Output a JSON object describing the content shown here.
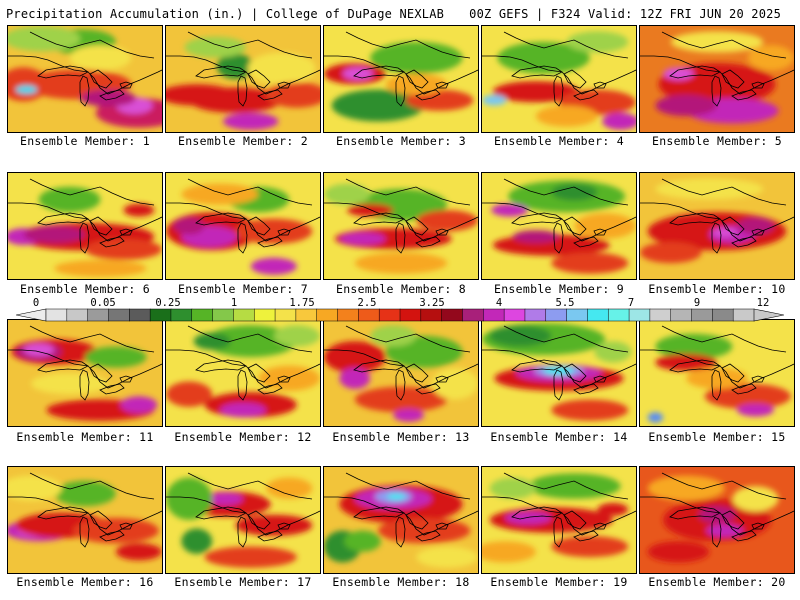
{
  "header": {
    "left": "Precipitation Accumulation (in.) | College of DuPage NEXLAB",
    "right": "00Z GEFS | F324 Valid: 12Z FRI JUN 20 2025"
  },
  "legend": {
    "tick_labels": [
      "0",
      "0.05",
      "0.25",
      "1",
      "1.75",
      "2.5",
      "3.25",
      "4",
      "5.5",
      "7",
      "9",
      "12"
    ],
    "swatch_colors": [
      "#e3e3e3",
      "#c8c8c8",
      "#9b9b9b",
      "#767676",
      "#5b5b5b",
      "#1a6f1a",
      "#2e8f2e",
      "#56b426",
      "#84c84a",
      "#b6dc43",
      "#eef23c",
      "#f4e24a",
      "#f8c83c",
      "#f7a823",
      "#f3811c",
      "#ee5b1a",
      "#e63217",
      "#d3130f",
      "#b50f0f",
      "#93081c",
      "#a8207a",
      "#c228b8",
      "#dd46e0",
      "#b07be8",
      "#8d9cf0",
      "#7ac8f0",
      "#45e8f0",
      "#66f2e8",
      "#9de6e6",
      "#cfcfcf",
      "#b5b5b5",
      "#9a9a9a",
      "#8a8a8a",
      "#c9c9c9"
    ]
  },
  "members": [
    {
      "label": "Ensemble Member: 1",
      "base": "#f2c43a",
      "blobs": [
        [
          "#e33c1a",
          0.45,
          0.55,
          0.35,
          0.14
        ],
        [
          "#cb1c5e",
          0.85,
          0.82,
          0.28,
          0.14
        ],
        [
          "#d94fd6",
          0.82,
          0.75,
          0.12,
          0.08
        ],
        [
          "#56b426",
          0.48,
          0.15,
          0.22,
          0.12
        ],
        [
          "#9fd24a",
          0.22,
          0.12,
          0.25,
          0.12
        ],
        [
          "#e33c1a",
          0.1,
          0.55,
          0.16,
          0.16
        ],
        [
          "#3ad7f0",
          0.12,
          0.6,
          0.07,
          0.04
        ],
        [
          "#b3127a",
          0.65,
          0.68,
          0.18,
          0.08
        ],
        [
          "#f4e24a",
          0.6,
          0.3,
          0.2,
          0.12
        ]
      ]
    },
    {
      "label": "Ensemble Member: 2",
      "base": "#f2c43a",
      "blobs": [
        [
          "#d61616",
          0.45,
          0.7,
          0.3,
          0.12
        ],
        [
          "#2e8f2e",
          0.45,
          0.38,
          0.12,
          0.12
        ],
        [
          "#9fd24a",
          0.32,
          0.2,
          0.2,
          0.1
        ],
        [
          "#c228b8",
          0.55,
          0.9,
          0.18,
          0.08
        ],
        [
          "#d61616",
          0.2,
          0.65,
          0.25,
          0.1
        ],
        [
          "#f4e24a",
          0.75,
          0.4,
          0.22,
          0.15
        ],
        [
          "#e33c1a",
          0.85,
          0.65,
          0.2,
          0.12
        ]
      ]
    },
    {
      "label": "Ensemble Member: 3",
      "base": "#f4e24a",
      "blobs": [
        [
          "#2e8f2e",
          0.35,
          0.75,
          0.3,
          0.15
        ],
        [
          "#56b426",
          0.6,
          0.3,
          0.3,
          0.15
        ],
        [
          "#d61616",
          0.2,
          0.45,
          0.2,
          0.1
        ],
        [
          "#5b8ff0",
          0.22,
          0.45,
          0.07,
          0.04
        ],
        [
          "#d94fd6",
          0.22,
          0.45,
          0.1,
          0.06
        ],
        [
          "#e33c1a",
          0.75,
          0.7,
          0.22,
          0.1
        ],
        [
          "#f7a823",
          0.6,
          0.55,
          0.2,
          0.1
        ]
      ]
    },
    {
      "label": "Ensemble Member: 4",
      "base": "#f4e24a",
      "blobs": [
        [
          "#56b426",
          0.4,
          0.3,
          0.3,
          0.15
        ],
        [
          "#9fd24a",
          0.75,
          0.15,
          0.2,
          0.1
        ],
        [
          "#d61616",
          0.35,
          0.62,
          0.28,
          0.1
        ],
        [
          "#7ac8f0",
          0.08,
          0.7,
          0.08,
          0.05
        ],
        [
          "#e33c1a",
          0.75,
          0.72,
          0.25,
          0.12
        ],
        [
          "#c228b8",
          0.9,
          0.9,
          0.12,
          0.08
        ],
        [
          "#f7a823",
          0.55,
          0.85,
          0.2,
          0.1
        ]
      ]
    },
    {
      "label": "Ensemble Member: 5",
      "base": "#ea7a20",
      "blobs": [
        [
          "#d61616",
          0.5,
          0.55,
          0.38,
          0.2
        ],
        [
          "#7ac8f0",
          0.25,
          0.45,
          0.07,
          0.04
        ],
        [
          "#d94fd6",
          0.25,
          0.45,
          0.1,
          0.06
        ],
        [
          "#c228b8",
          0.6,
          0.8,
          0.3,
          0.12
        ],
        [
          "#b3127a",
          0.3,
          0.75,
          0.2,
          0.1
        ],
        [
          "#f4e24a",
          0.5,
          0.15,
          0.3,
          0.1
        ],
        [
          "#f7a823",
          0.85,
          0.3,
          0.15,
          0.12
        ]
      ]
    },
    {
      "label": "Ensemble Member: 6",
      "base": "#f4e24a",
      "blobs": [
        [
          "#d61616",
          0.5,
          0.6,
          0.45,
          0.13
        ],
        [
          "#c228b8",
          0.1,
          0.6,
          0.12,
          0.08
        ],
        [
          "#b3127a",
          0.3,
          0.58,
          0.2,
          0.08
        ],
        [
          "#e33c1a",
          0.75,
          0.72,
          0.25,
          0.1
        ],
        [
          "#56b426",
          0.4,
          0.25,
          0.2,
          0.12
        ],
        [
          "#f7a823",
          0.6,
          0.9,
          0.3,
          0.08
        ],
        [
          "#d61616",
          0.85,
          0.35,
          0.1,
          0.06
        ]
      ]
    },
    {
      "label": "Ensemble Member: 7",
      "base": "#f4e24a",
      "blobs": [
        [
          "#d61616",
          0.3,
          0.55,
          0.3,
          0.18
        ],
        [
          "#c228b8",
          0.28,
          0.6,
          0.18,
          0.1
        ],
        [
          "#b3127a",
          0.15,
          0.5,
          0.1,
          0.08
        ],
        [
          "#e33c1a",
          0.7,
          0.55,
          0.25,
          0.12
        ],
        [
          "#c228b8",
          0.7,
          0.88,
          0.15,
          0.08
        ],
        [
          "#56b426",
          0.6,
          0.25,
          0.2,
          0.12
        ],
        [
          "#f7a823",
          0.35,
          0.2,
          0.25,
          0.1
        ]
      ]
    },
    {
      "label": "Ensemble Member: 8",
      "base": "#f4e24a",
      "blobs": [
        [
          "#56b426",
          0.5,
          0.3,
          0.3,
          0.15
        ],
        [
          "#d61616",
          0.45,
          0.62,
          0.38,
          0.1
        ],
        [
          "#c228b8",
          0.25,
          0.62,
          0.15,
          0.06
        ],
        [
          "#e33c1a",
          0.8,
          0.45,
          0.2,
          0.1
        ],
        [
          "#9fd24a",
          0.15,
          0.2,
          0.15,
          0.1
        ],
        [
          "#f7a823",
          0.5,
          0.85,
          0.3,
          0.1
        ],
        [
          "#d61616",
          0.3,
          0.35,
          0.15,
          0.06
        ]
      ]
    },
    {
      "label": "Ensemble Member: 9",
      "base": "#f4e24a",
      "blobs": [
        [
          "#56b426",
          0.55,
          0.22,
          0.38,
          0.15
        ],
        [
          "#2e8f2e",
          0.6,
          0.18,
          0.15,
          0.08
        ],
        [
          "#d61616",
          0.45,
          0.68,
          0.38,
          0.1
        ],
        [
          "#c228b8",
          0.18,
          0.35,
          0.12,
          0.06
        ],
        [
          "#b3127a",
          0.35,
          0.6,
          0.15,
          0.06
        ],
        [
          "#f7a823",
          0.8,
          0.5,
          0.2,
          0.12
        ],
        [
          "#e33c1a",
          0.7,
          0.85,
          0.25,
          0.1
        ]
      ]
    },
    {
      "label": "Ensemble Member: 10",
      "base": "#f2c43a",
      "blobs": [
        [
          "#d61616",
          0.5,
          0.55,
          0.45,
          0.18
        ],
        [
          "#c228b8",
          0.6,
          0.58,
          0.15,
          0.08
        ],
        [
          "#b3127a",
          0.75,
          0.5,
          0.12,
          0.08
        ],
        [
          "#e33c1a",
          0.2,
          0.75,
          0.2,
          0.1
        ],
        [
          "#f4e24a",
          0.45,
          0.15,
          0.35,
          0.1
        ],
        [
          "#d94fd6",
          0.55,
          0.56,
          0.08,
          0.04
        ]
      ]
    },
    {
      "label": "Ensemble Member: 11",
      "base": "#f2c43a",
      "blobs": [
        [
          "#d61616",
          0.3,
          0.3,
          0.28,
          0.12
        ],
        [
          "#b3127a",
          0.2,
          0.3,
          0.15,
          0.08
        ],
        [
          "#7ac8f0",
          0.2,
          0.28,
          0.07,
          0.04
        ],
        [
          "#d94fd6",
          0.2,
          0.28,
          0.1,
          0.06
        ],
        [
          "#d61616",
          0.6,
          0.85,
          0.35,
          0.1
        ],
        [
          "#c228b8",
          0.85,
          0.8,
          0.12,
          0.08
        ],
        [
          "#56b426",
          0.7,
          0.35,
          0.2,
          0.1
        ],
        [
          "#f4e24a",
          0.4,
          0.6,
          0.25,
          0.1
        ]
      ]
    },
    {
      "label": "Ensemble Member: 12",
      "base": "#f4e24a",
      "blobs": [
        [
          "#56b426",
          0.55,
          0.2,
          0.3,
          0.15
        ],
        [
          "#2e8f2e",
          0.3,
          0.2,
          0.12,
          0.08
        ],
        [
          "#d61616",
          0.55,
          0.8,
          0.3,
          0.12
        ],
        [
          "#c228b8",
          0.5,
          0.85,
          0.15,
          0.07
        ],
        [
          "#e33c1a",
          0.15,
          0.7,
          0.15,
          0.12
        ],
        [
          "#f7a823",
          0.8,
          0.55,
          0.2,
          0.12
        ],
        [
          "#9fd24a",
          0.85,
          0.15,
          0.15,
          0.1
        ]
      ]
    },
    {
      "label": "Ensemble Member: 13",
      "base": "#f2c43a",
      "blobs": [
        [
          "#d61616",
          0.2,
          0.35,
          0.2,
          0.15
        ],
        [
          "#c228b8",
          0.2,
          0.55,
          0.1,
          0.1
        ],
        [
          "#56b426",
          0.65,
          0.3,
          0.25,
          0.15
        ],
        [
          "#e33c1a",
          0.5,
          0.75,
          0.3,
          0.12
        ],
        [
          "#c228b8",
          0.55,
          0.9,
          0.1,
          0.06
        ],
        [
          "#f4e24a",
          0.85,
          0.6,
          0.15,
          0.15
        ],
        [
          "#9fd24a",
          0.45,
          0.15,
          0.15,
          0.1
        ]
      ]
    },
    {
      "label": "Ensemble Member: 14",
      "base": "#f4e24a",
      "blobs": [
        [
          "#56b426",
          0.4,
          0.18,
          0.4,
          0.15
        ],
        [
          "#2e8f2e",
          0.25,
          0.15,
          0.2,
          0.1
        ],
        [
          "#d61616",
          0.5,
          0.55,
          0.42,
          0.12
        ],
        [
          "#c228b8",
          0.5,
          0.5,
          0.28,
          0.08
        ],
        [
          "#8d9cf0",
          0.5,
          0.48,
          0.16,
          0.05
        ],
        [
          "#45e8f0",
          0.5,
          0.48,
          0.1,
          0.04
        ],
        [
          "#e33c1a",
          0.7,
          0.85,
          0.25,
          0.1
        ],
        [
          "#9fd24a",
          0.85,
          0.3,
          0.12,
          0.1
        ]
      ]
    },
    {
      "label": "Ensemble Member: 15",
      "base": "#f4e24a",
      "blobs": [
        [
          "#56b426",
          0.35,
          0.25,
          0.25,
          0.12
        ],
        [
          "#d61616",
          0.3,
          0.4,
          0.2,
          0.08
        ],
        [
          "#e33c1a",
          0.7,
          0.72,
          0.28,
          0.12
        ],
        [
          "#c228b8",
          0.75,
          0.85,
          0.12,
          0.06
        ],
        [
          "#f7a823",
          0.5,
          0.55,
          0.2,
          0.1
        ],
        [
          "#5b8ff0",
          0.1,
          0.92,
          0.05,
          0.05
        ]
      ]
    },
    {
      "label": "Ensemble Member: 16",
      "base": "#f2c43a",
      "blobs": [
        [
          "#c228b8",
          0.2,
          0.6,
          0.22,
          0.1
        ],
        [
          "#d94fd6",
          0.18,
          0.6,
          0.12,
          0.06
        ],
        [
          "#d61616",
          0.35,
          0.55,
          0.3,
          0.12
        ],
        [
          "#e33c1a",
          0.7,
          0.6,
          0.28,
          0.12
        ],
        [
          "#56b426",
          0.5,
          0.25,
          0.2,
          0.12
        ],
        [
          "#f4e24a",
          0.15,
          0.2,
          0.2,
          0.12
        ],
        [
          "#d61616",
          0.85,
          0.8,
          0.15,
          0.08
        ]
      ]
    },
    {
      "label": "Ensemble Member: 17",
      "base": "#f4e24a",
      "blobs": [
        [
          "#d61616",
          0.4,
          0.35,
          0.28,
          0.12
        ],
        [
          "#c228b8",
          0.38,
          0.3,
          0.12,
          0.06
        ],
        [
          "#56b426",
          0.15,
          0.3,
          0.15,
          0.2
        ],
        [
          "#2e8f2e",
          0.2,
          0.7,
          0.1,
          0.12
        ],
        [
          "#d61616",
          0.7,
          0.55,
          0.25,
          0.1
        ],
        [
          "#e33c1a",
          0.55,
          0.85,
          0.3,
          0.1
        ],
        [
          "#f7a823",
          0.8,
          0.2,
          0.15,
          0.1
        ]
      ]
    },
    {
      "label": "Ensemble Member: 18",
      "base": "#f2c43a",
      "blobs": [
        [
          "#d61616",
          0.5,
          0.35,
          0.4,
          0.18
        ],
        [
          "#c228b8",
          0.45,
          0.3,
          0.25,
          0.1
        ],
        [
          "#8d9cf0",
          0.45,
          0.28,
          0.12,
          0.06
        ],
        [
          "#45e8f0",
          0.47,
          0.28,
          0.06,
          0.03
        ],
        [
          "#e33c1a",
          0.65,
          0.6,
          0.3,
          0.12
        ],
        [
          "#2e8f2e",
          0.12,
          0.75,
          0.12,
          0.15
        ],
        [
          "#56b426",
          0.25,
          0.7,
          0.12,
          0.1
        ],
        [
          "#f4e24a",
          0.8,
          0.85,
          0.2,
          0.1
        ]
      ]
    },
    {
      "label": "Ensemble Member: 19",
      "base": "#f4e24a",
      "blobs": [
        [
          "#d61616",
          0.45,
          0.5,
          0.4,
          0.12
        ],
        [
          "#c228b8",
          0.3,
          0.48,
          0.15,
          0.06
        ],
        [
          "#56b426",
          0.6,
          0.18,
          0.3,
          0.12
        ],
        [
          "#9fd24a",
          0.2,
          0.2,
          0.15,
          0.1
        ],
        [
          "#e33c1a",
          0.7,
          0.75,
          0.25,
          0.1
        ],
        [
          "#f7a823",
          0.15,
          0.8,
          0.2,
          0.1
        ],
        [
          "#d61616",
          0.85,
          0.4,
          0.1,
          0.06
        ]
      ]
    },
    {
      "label": "Ensemble Member: 20",
      "base": "#e8571c",
      "blobs": [
        [
          "#d61616",
          0.5,
          0.5,
          0.35,
          0.2
        ],
        [
          "#b3127a",
          0.5,
          0.45,
          0.12,
          0.08
        ],
        [
          "#c228b8",
          0.55,
          0.6,
          0.12,
          0.06
        ],
        [
          "#f7a823",
          0.3,
          0.2,
          0.25,
          0.12
        ],
        [
          "#f4e24a",
          0.75,
          0.3,
          0.15,
          0.12
        ],
        [
          "#d61616",
          0.25,
          0.8,
          0.2,
          0.1
        ]
      ]
    }
  ]
}
